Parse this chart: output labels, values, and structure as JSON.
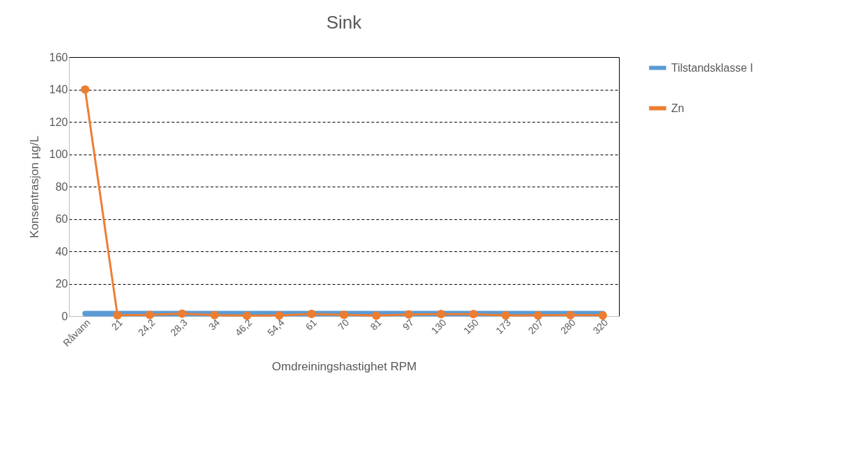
{
  "chart_data": {
    "type": "line",
    "title": "Sink",
    "xlabel": "Omdreiningshastighet RPM",
    "ylabel": "Konsentrasjon µg/L",
    "categories": [
      "Råvann",
      "21",
      "24,2",
      "28,3",
      "34",
      "46,2",
      "54,4",
      "61",
      "70",
      "81",
      "97",
      "130",
      "150",
      "173",
      "207",
      "280",
      "320"
    ],
    "series": [
      {
        "name": "Tilstandsklasse I",
        "color": "#5b9bd5",
        "marker": "none",
        "values": [
          1.5,
          1.5,
          1.5,
          1.5,
          1.5,
          1.5,
          1.5,
          1.5,
          1.5,
          1.5,
          1.5,
          1.5,
          1.5,
          1.5,
          1.5,
          1.5,
          1.5
        ]
      },
      {
        "name": "Zn",
        "color": "#ed7d31",
        "marker": "circle",
        "values": [
          140,
          0.5,
          0.7,
          1.5,
          0.6,
          0.2,
          0.4,
          1.3,
          0.8,
          0.3,
          1.0,
          1.2,
          1.2,
          0.4,
          0.4,
          0.6,
          0.4
        ]
      }
    ],
    "ylim": [
      0,
      160
    ],
    "yticks": [
      0,
      20,
      40,
      60,
      80,
      100,
      120,
      140,
      160
    ],
    "grid": "y",
    "legend": "right"
  }
}
